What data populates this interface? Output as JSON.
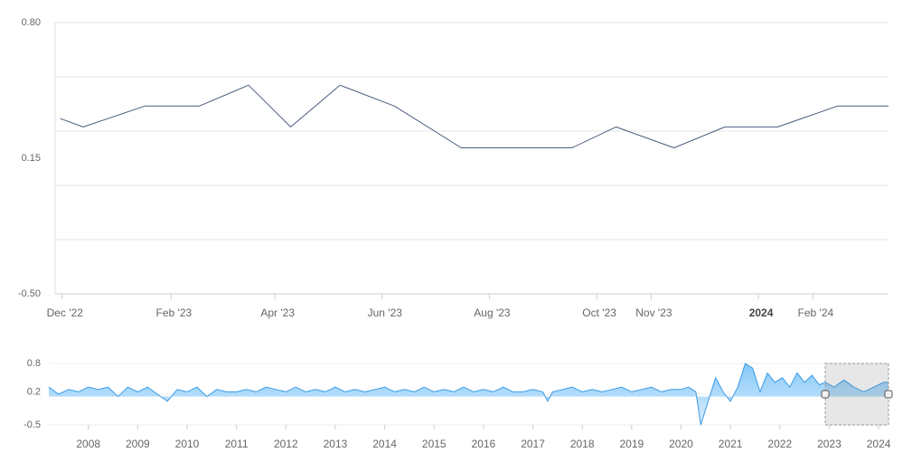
{
  "chart_data": [
    {
      "type": "line",
      "title": "",
      "xlabel": "",
      "ylabel": "",
      "y_tick_labels": [
        "0.80",
        "0.15",
        "-0.50"
      ],
      "ylim": [
        -0.5,
        0.8
      ],
      "x_tick_labels": [
        {
          "label": "Dec '22",
          "date": "2022-12-01"
        },
        {
          "label": "Feb '23",
          "date": "2023-02-01"
        },
        {
          "label": "Apr '23",
          "date": "2023-04-01"
        },
        {
          "label": "Jun '23",
          "date": "2023-06-01"
        },
        {
          "label": "Aug '23",
          "date": "2023-08-01"
        },
        {
          "label": "Oct '23",
          "date": "2023-10-01"
        },
        {
          "label": "Nov '23",
          "date": "2023-11-01"
        },
        {
          "label": "2024",
          "date": "2024-01-01",
          "bold": true
        },
        {
          "label": "Feb '24",
          "date": "2024-02-01"
        }
      ],
      "grid": true,
      "color": "#4a5d7e",
      "series": [
        {
          "x": [
            "2022-11-30",
            "2022-12-13",
            "2023-01-17",
            "2023-02-17",
            "2023-03-17",
            "2023-04-10",
            "2023-05-08",
            "2023-06-08",
            "2023-07-16",
            "2023-09-17",
            "2023-10-12",
            "2023-11-14",
            "2023-12-13",
            "2024-01-12",
            "2024-02-15",
            "2024-03-15"
          ],
          "y": [
            0.34,
            0.3,
            0.4,
            0.4,
            0.5,
            0.3,
            0.5,
            0.4,
            0.2,
            0.2,
            0.3,
            0.2,
            0.3,
            0.3,
            0.4,
            0.4
          ]
        }
      ]
    },
    {
      "type": "area",
      "role": "navigator",
      "title": "",
      "y_tick_labels": [
        "0.8",
        "0.2",
        "-0.5"
      ],
      "ylim": [
        -0.5,
        0.8
      ],
      "x_tick_labels": [
        "2008",
        "2009",
        "2010",
        "2011",
        "2012",
        "2013",
        "2014",
        "2015",
        "2016",
        "2017",
        "2018",
        "2019",
        "2020",
        "2021",
        "2022",
        "2023",
        "2024"
      ],
      "selected_range": [
        "2022-11-30",
        "2024-03-15"
      ],
      "color": "#5ab0f0",
      "series": [
        {
          "x": [
            2007.2,
            2007.4,
            2007.6,
            2007.8,
            2008.0,
            2008.2,
            2008.4,
            2008.6,
            2008.8,
            2009.0,
            2009.2,
            2009.4,
            2009.6,
            2009.8,
            2010.0,
            2010.2,
            2010.4,
            2010.6,
            2010.8,
            2011.0,
            2011.2,
            2011.4,
            2011.6,
            2011.8,
            2012.0,
            2012.2,
            2012.4,
            2012.6,
            2012.8,
            2013.0,
            2013.2,
            2013.4,
            2013.6,
            2013.8,
            2014.0,
            2014.2,
            2014.4,
            2014.6,
            2014.8,
            2015.0,
            2015.2,
            2015.4,
            2015.6,
            2015.8,
            2016.0,
            2016.2,
            2016.4,
            2016.6,
            2016.8,
            2017.0,
            2017.2,
            2017.3,
            2017.4,
            2017.6,
            2017.8,
            2018.0,
            2018.2,
            2018.4,
            2018.6,
            2018.8,
            2019.0,
            2019.2,
            2019.4,
            2019.6,
            2019.8,
            2020.0,
            2020.15,
            2020.3,
            2020.4,
            2020.55,
            2020.7,
            2020.85,
            2021.0,
            2021.15,
            2021.3,
            2021.45,
            2021.6,
            2021.75,
            2021.9,
            2022.05,
            2022.2,
            2022.35,
            2022.5,
            2022.65,
            2022.8,
            2022.92,
            2023.1,
            2023.3,
            2023.5,
            2023.7,
            2023.9,
            2024.1,
            2024.2
          ],
          "y": [
            0.3,
            0.15,
            0.25,
            0.2,
            0.3,
            0.25,
            0.3,
            0.1,
            0.3,
            0.2,
            0.3,
            0.15,
            0.0,
            0.25,
            0.2,
            0.3,
            0.1,
            0.25,
            0.2,
            0.2,
            0.25,
            0.2,
            0.3,
            0.25,
            0.2,
            0.3,
            0.2,
            0.25,
            0.2,
            0.3,
            0.2,
            0.25,
            0.2,
            0.25,
            0.3,
            0.2,
            0.25,
            0.2,
            0.3,
            0.2,
            0.25,
            0.2,
            0.3,
            0.2,
            0.25,
            0.2,
            0.3,
            0.2,
            0.2,
            0.25,
            0.2,
            0.0,
            0.2,
            0.25,
            0.3,
            0.2,
            0.25,
            0.2,
            0.25,
            0.3,
            0.2,
            0.25,
            0.3,
            0.2,
            0.25,
            0.25,
            0.3,
            0.2,
            -0.5,
            0.0,
            0.5,
            0.2,
            0.0,
            0.3,
            0.8,
            0.7,
            0.2,
            0.6,
            0.4,
            0.5,
            0.3,
            0.6,
            0.4,
            0.55,
            0.35,
            0.4,
            0.3,
            0.45,
            0.3,
            0.2,
            0.3,
            0.4,
            0.4
          ]
        }
      ]
    }
  ]
}
